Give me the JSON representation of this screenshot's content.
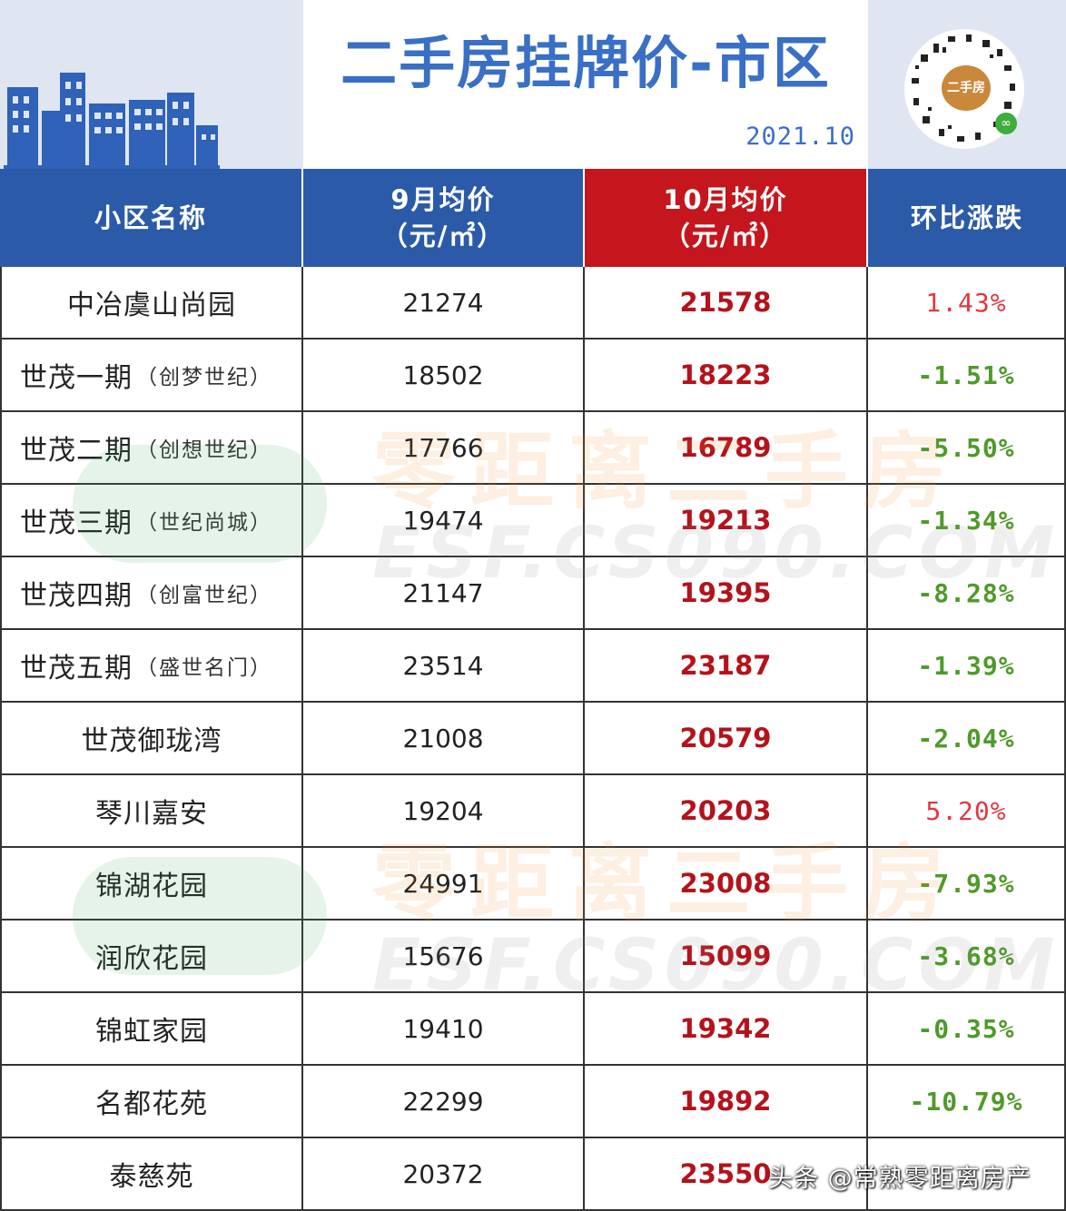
{
  "header": {
    "title": "二手房挂牌价-市区",
    "date": "2021.10",
    "qr_badge": "二手房"
  },
  "table": {
    "columns": [
      {
        "line1": "小区名称",
        "line2": ""
      },
      {
        "line1": "9月均价",
        "line2": "（元/㎡）"
      },
      {
        "line1": "10月均价",
        "line2": "（元/㎡）"
      },
      {
        "line1": "环比涨跌",
        "line2": ""
      }
    ],
    "rows": [
      {
        "name": "中冶虞山尚园",
        "sub": "",
        "sep": "21274",
        "oct": "21578",
        "change": "1.43%"
      },
      {
        "name": "世茂一期",
        "sub": "（创梦世纪）",
        "sep": "18502",
        "oct": "18223",
        "change": "-1.51%"
      },
      {
        "name": "世茂二期",
        "sub": "（创想世纪）",
        "sep": "17766",
        "oct": "16789",
        "change": "-5.50%"
      },
      {
        "name": "世茂三期",
        "sub": "（世纪尚城）",
        "sep": "19474",
        "oct": "19213",
        "change": "-1.34%"
      },
      {
        "name": "世茂四期",
        "sub": "（创富世纪）",
        "sep": "21147",
        "oct": "19395",
        "change": "-8.28%"
      },
      {
        "name": "世茂五期",
        "sub": "（盛世名门）",
        "sep": "23514",
        "oct": "23187",
        "change": "-1.39%"
      },
      {
        "name": "世茂御珑湾",
        "sub": "",
        "sep": "21008",
        "oct": "20579",
        "change": "-2.04%"
      },
      {
        "name": "琴川嘉安",
        "sub": "",
        "sep": "19204",
        "oct": "20203",
        "change": "5.20%"
      },
      {
        "name": "锦湖花园",
        "sub": "",
        "sep": "24991",
        "oct": "23008",
        "change": "-7.93%"
      },
      {
        "name": "润欣花园",
        "sub": "",
        "sep": "15676",
        "oct": "15099",
        "change": "-3.68%"
      },
      {
        "name": "锦虹家园",
        "sub": "",
        "sep": "19410",
        "oct": "19342",
        "change": "-0.35%"
      },
      {
        "name": "名都花苑",
        "sub": "",
        "sep": "22299",
        "oct": "19892",
        "change": "-10.79%"
      },
      {
        "name": "泰慈苑",
        "sub": "",
        "sep": "20372",
        "oct": "23550",
        "change": ""
      }
    ]
  },
  "watermark": {
    "brand": "零距离二手房",
    "url": "ESF.CS090.COM"
  },
  "credit": "头条 @常熟零距离房产",
  "colors": {
    "header_blue": "#2b5ba8",
    "october_red": "#c4161c",
    "title_blue": "#3a6fc6",
    "down_green": "#4f9a2a",
    "up_red": "#e0383e"
  }
}
